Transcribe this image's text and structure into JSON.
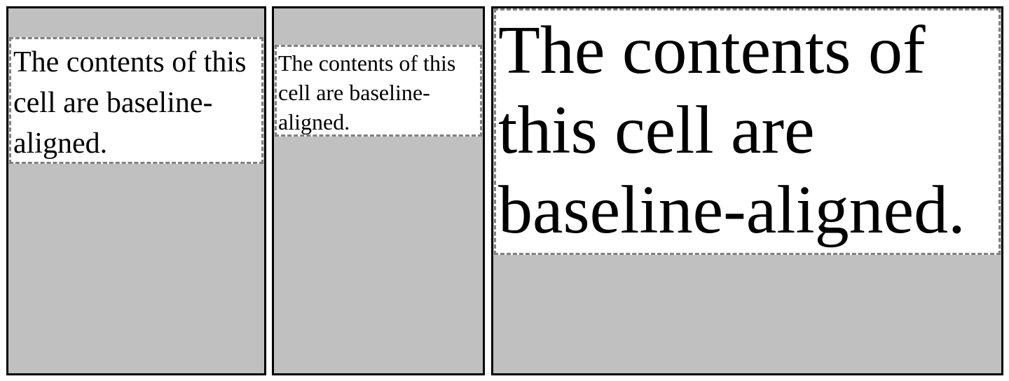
{
  "cells": [
    {
      "text": "The contents of this cell are baseline-aligned."
    },
    {
      "text": "The contents of this cell are baseline-aligned."
    },
    {
      "text": "The contents of this cell are baseline-aligned."
    }
  ],
  "colors": {
    "cell_background": "#c0c0c0",
    "content_background": "#ffffff",
    "cell_border": "#000000",
    "content_border": "#808080"
  }
}
